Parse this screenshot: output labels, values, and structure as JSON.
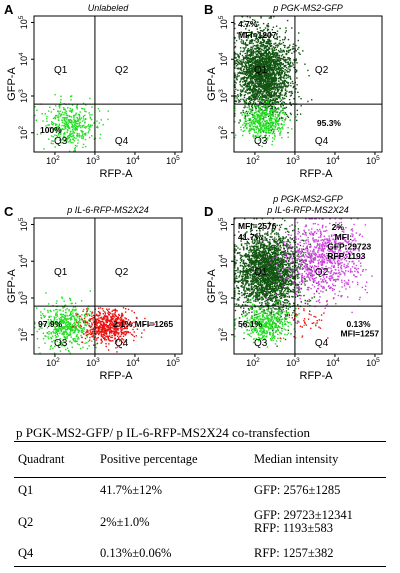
{
  "chart_data": [
    {
      "type": "scatter",
      "panel": "A",
      "title_lines": [
        "Unlabeled"
      ],
      "xlabel": "RFP-A",
      "ylabel": "GFP-A",
      "log_scale": true,
      "xlim": [
        30,
        150000
      ],
      "ylim": [
        30,
        150000
      ],
      "x_tick_labels": [
        "10^2",
        "10^3",
        "10^4",
        "10^5"
      ],
      "y_tick_labels": [
        "10^2",
        "10^3",
        "10^4",
        "10^5"
      ],
      "quadrant_gate": {
        "x": 1000,
        "y": 600
      },
      "quadrant_labels": [
        "Q1",
        "Q2",
        "Q3",
        "Q4"
      ],
      "annotations": [
        "100%"
      ],
      "populations": [
        {
          "color": "#22dd22",
          "count": 420,
          "center": [
            230,
            160
          ],
          "spread_log": [
            0.33,
            0.3
          ]
        }
      ]
    },
    {
      "type": "scatter",
      "panel": "B",
      "title_lines": [
        "p PGK-MS2-GFP"
      ],
      "xlabel": "RFP-A",
      "ylabel": "GFP-A",
      "log_scale": true,
      "xlim": [
        30,
        150000
      ],
      "ylim": [
        30,
        150000
      ],
      "x_tick_labels": [
        "10^2",
        "10^3",
        "10^4",
        "10^5"
      ],
      "y_tick_labels": [
        "10^2",
        "10^3",
        "10^4",
        "10^5"
      ],
      "quadrant_gate": {
        "x": 1000,
        "y": 600
      },
      "quadrant_labels": [
        "Q1",
        "Q2",
        "Q3",
        "Q4"
      ],
      "annotations": [
        "4.7%",
        "MFI=1207",
        "95.3%"
      ],
      "populations": [
        {
          "color": "#115511",
          "count": 2600,
          "center": [
            170,
            4000
          ],
          "spread_log": [
            0.35,
            0.55
          ]
        },
        {
          "color": "#22dd22",
          "count": 450,
          "center": [
            170,
            200
          ],
          "spread_log": [
            0.28,
            0.25
          ]
        }
      ]
    },
    {
      "type": "scatter",
      "panel": "C",
      "title_lines": [
        "p IL-6-RFP-MS2X24"
      ],
      "xlabel": "RFP-A",
      "ylabel": "GFP-A",
      "log_scale": true,
      "xlim": [
        30,
        150000
      ],
      "ylim": [
        30,
        150000
      ],
      "x_tick_labels": [
        "10^2",
        "10^3",
        "10^4",
        "10^5"
      ],
      "y_tick_labels": [
        "10^2",
        "10^3",
        "10^4",
        "10^5"
      ],
      "quadrant_gate": {
        "x": 1000,
        "y": 600
      },
      "quadrant_labels": [
        "Q1",
        "Q2",
        "Q3",
        "Q4"
      ],
      "annotations": [
        "97.9%",
        "2.1%",
        "MFI=1265"
      ],
      "populations": [
        {
          "color": "#22dd22",
          "count": 520,
          "center": [
            200,
            180
          ],
          "spread_log": [
            0.35,
            0.3
          ]
        },
        {
          "color": "#ee1111",
          "count": 650,
          "center": [
            2200,
            170
          ],
          "spread_log": [
            0.3,
            0.22
          ]
        }
      ]
    },
    {
      "type": "scatter",
      "panel": "D",
      "title_lines": [
        "p PGK-MS2-GFP",
        "p IL-6-RFP-MS2X24"
      ],
      "xlabel": "RFP-A",
      "ylabel": "GFP-A",
      "log_scale": true,
      "xlim": [
        30,
        150000
      ],
      "ylim": [
        30,
        150000
      ],
      "x_tick_labels": [
        "10^2",
        "10^3",
        "10^4",
        "10^5"
      ],
      "y_tick_labels": [
        "10^2",
        "10^3",
        "10^4",
        "10^5"
      ],
      "quadrant_gate": {
        "x": 1000,
        "y": 600
      },
      "quadrant_labels": [
        "Q1",
        "Q2",
        "Q3",
        "Q4"
      ],
      "annotations": [
        "MFI=2576",
        "41.7%",
        "2%",
        "MFI:",
        "GFP:29723",
        "RFP:1193",
        "56.1%",
        "0.13%",
        "MFI=1257"
      ],
      "populations": [
        {
          "color": "#115511",
          "count": 2700,
          "center": [
            220,
            5000
          ],
          "spread_log": [
            0.4,
            0.55
          ]
        },
        {
          "color": "#cc44dd",
          "count": 900,
          "center": [
            5000,
            12000
          ],
          "spread_log": [
            0.5,
            0.5
          ]
        },
        {
          "color": "#22dd22",
          "count": 450,
          "center": [
            200,
            200
          ],
          "spread_log": [
            0.3,
            0.25
          ]
        },
        {
          "color": "#ee1111",
          "count": 40,
          "center": [
            2000,
            250
          ],
          "spread_log": [
            0.3,
            0.2
          ]
        }
      ]
    }
  ],
  "table": {
    "title": "p PGK-MS2-GFP/ p IL-6-RFP-MS2X24  co-transfection",
    "headers": [
      "Quadrant",
      "Positive percentage",
      "Median intensity"
    ],
    "rows": [
      {
        "quadrant": "Q1",
        "percentage": "41.7%±12%",
        "intensity": [
          "GFP: 2576±1285"
        ]
      },
      {
        "quadrant": "Q2",
        "percentage": "2%±1.0%",
        "intensity": [
          "GFP: 29723±12341",
          "RFP: 1193±583"
        ]
      },
      {
        "quadrant": "Q4",
        "percentage": "0.13%±0.06%",
        "intensity": [
          "RFP: 1257±382"
        ]
      }
    ]
  }
}
